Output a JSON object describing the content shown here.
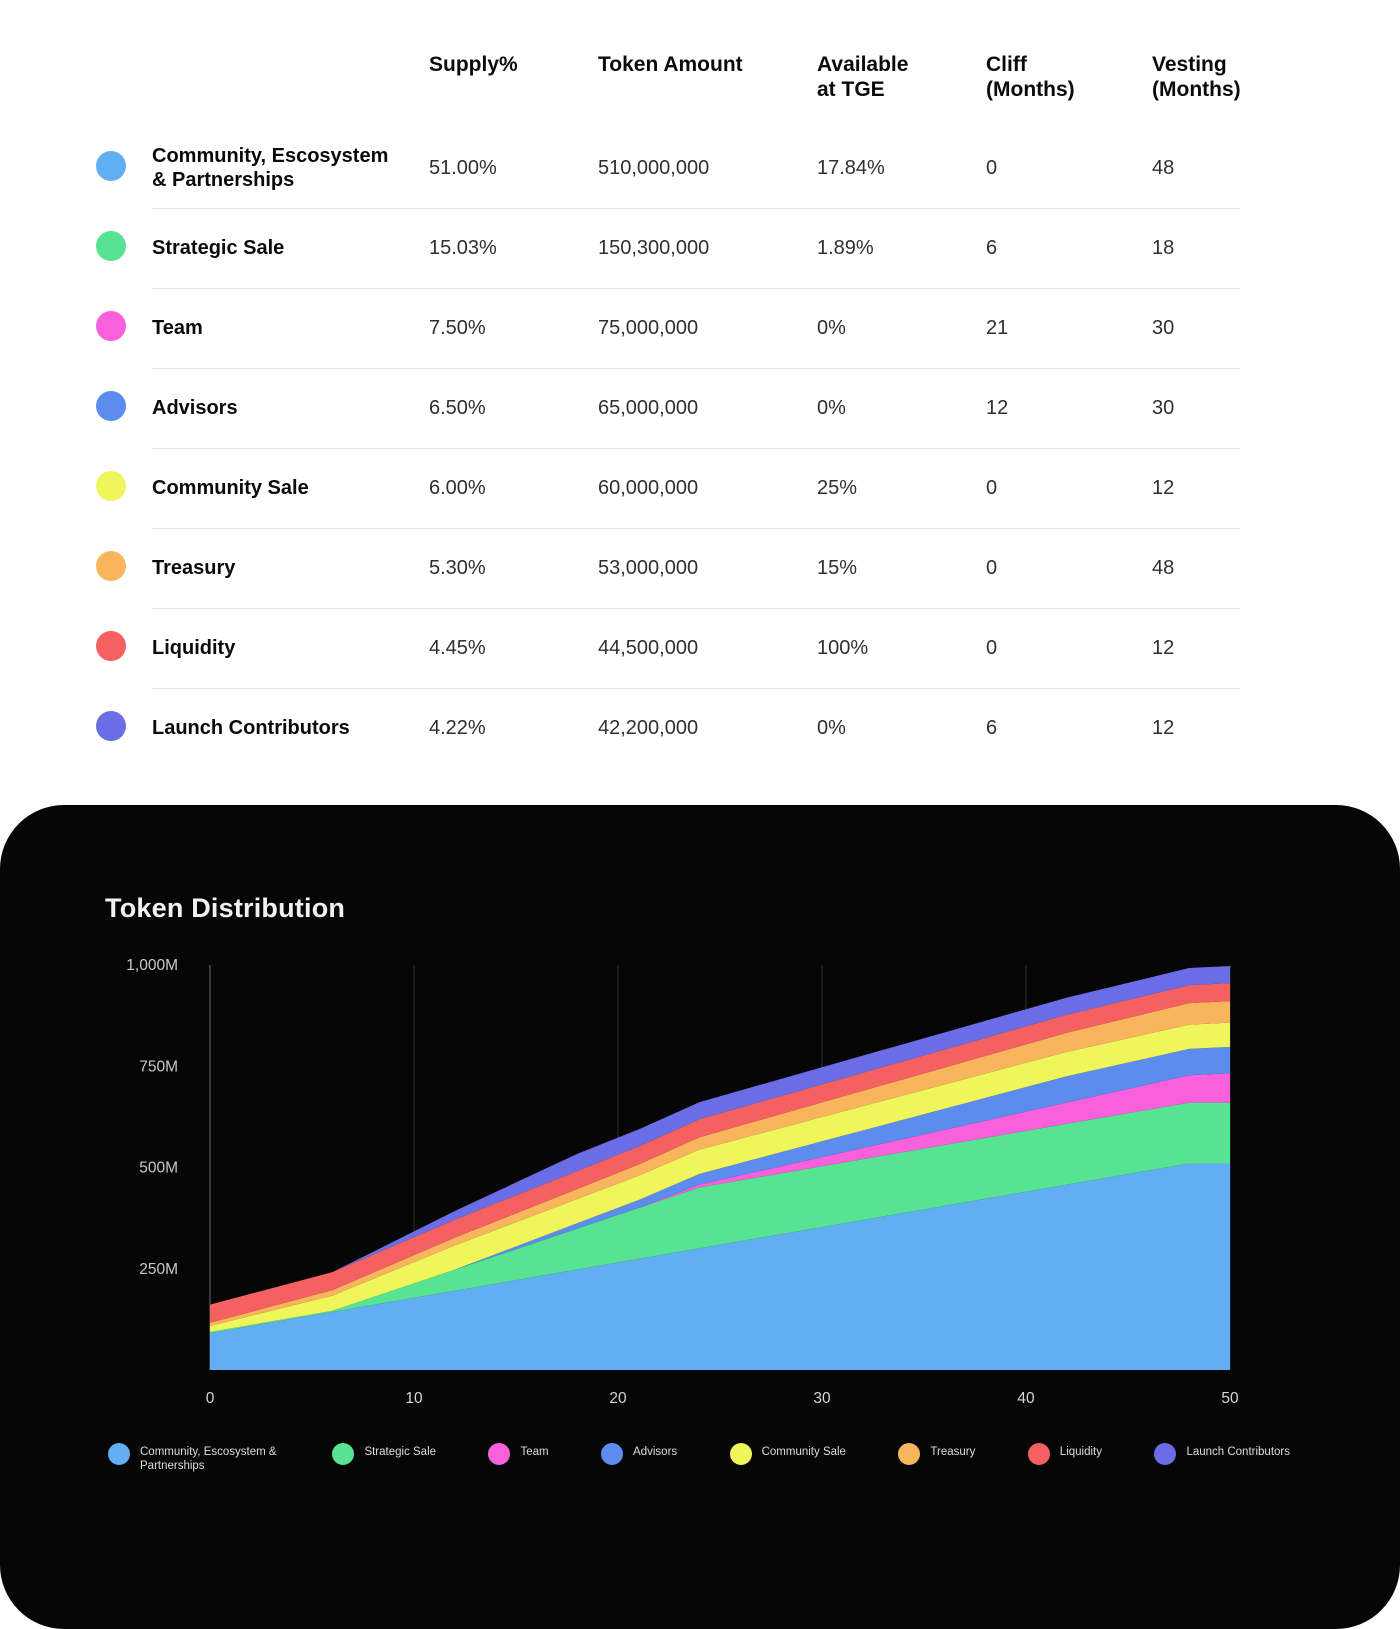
{
  "table": {
    "headers": {
      "supply": "Supply%",
      "amount": "Token Amount",
      "tge": "Available\nat TGE",
      "cliff": "Cliff\n(Months)",
      "vesting": "Vesting\n(Months)"
    },
    "rows": [
      {
        "name": "Community, Escosystem & Partnerships",
        "color": "#62aef3",
        "supply": "51.00%",
        "amount": "510,000,000",
        "tge": "17.84%",
        "cliff": "0",
        "vesting": "48"
      },
      {
        "name": "Strategic Sale",
        "color": "#57e492",
        "supply": "15.03%",
        "amount": "150,300,000",
        "tge": "1.89%",
        "cliff": "6",
        "vesting": "18"
      },
      {
        "name": "Team",
        "color": "#f960dc",
        "supply": "7.50%",
        "amount": "75,000,000",
        "tge": "0%",
        "cliff": "21",
        "vesting": "30"
      },
      {
        "name": "Advisors",
        "color": "#5d8cef",
        "supply": "6.50%",
        "amount": "65,000,000",
        "tge": "0%",
        "cliff": "12",
        "vesting": "30"
      },
      {
        "name": "Community Sale",
        "color": "#eef65c",
        "supply": "6.00%",
        "amount": "60,000,000",
        "tge": "25%",
        "cliff": "0",
        "vesting": "12"
      },
      {
        "name": "Treasury",
        "color": "#f8b55c",
        "supply": "5.30%",
        "amount": "53,000,000",
        "tge": "15%",
        "cliff": "0",
        "vesting": "48"
      },
      {
        "name": "Liquidity",
        "color": "#f56060",
        "supply": "4.45%",
        "amount": "44,500,000",
        "tge": "100%",
        "cliff": "0",
        "vesting": "12"
      },
      {
        "name": "Launch Contributors",
        "color": "#6b6de6",
        "supply": "4.22%",
        "amount": "42,200,000",
        "tge": "0%",
        "cliff": "6",
        "vesting": "12"
      }
    ]
  },
  "chart": {
    "title": "Token Distribution"
  },
  "chart_data": {
    "type": "area",
    "stacked": true,
    "title": "Token Distribution",
    "unit": "millions of tokens",
    "x": [
      0,
      6,
      12,
      18,
      21,
      24,
      30,
      36,
      42,
      48,
      50
    ],
    "xlim": [
      0,
      50
    ],
    "ylim": [
      0,
      1000
    ],
    "x_ticks": [
      0,
      10,
      20,
      30,
      40,
      50
    ],
    "x_tick_labels": [
      "0",
      "10",
      "20",
      "30",
      "40",
      "50"
    ],
    "y_ticks": [
      250,
      500,
      750,
      1000
    ],
    "y_tick_labels": [
      "250M",
      "500M",
      "750M",
      "1,000M"
    ],
    "grid": "vertical",
    "legend_position": "bottom",
    "series": [
      {
        "name": "Community, Escosystem & Partnerships",
        "color": "#62aef3",
        "values": [
          91.0,
          143.4,
          195.7,
          248.1,
          274.3,
          300.5,
          352.9,
          405.2,
          457.6,
          510.0,
          510.0
        ]
      },
      {
        "name": "Strategic Sale",
        "color": "#57e492",
        "values": [
          2.8,
          2.8,
          52.0,
          101.1,
          125.7,
          150.3,
          150.3,
          150.3,
          150.3,
          150.3,
          150.3
        ]
      },
      {
        "name": "Team",
        "color": "#f960dc",
        "values": [
          0,
          0,
          0,
          0,
          0,
          7.5,
          22.5,
          37.5,
          52.5,
          67.5,
          72.5
        ]
      },
      {
        "name": "Advisors",
        "color": "#5d8cef",
        "values": [
          0,
          0,
          0,
          13.0,
          19.5,
          26.0,
          39.0,
          52.0,
          65.0,
          65.0,
          65.0
        ]
      },
      {
        "name": "Community Sale",
        "color": "#eef65c",
        "values": [
          15.0,
          37.5,
          60.0,
          60.0,
          60.0,
          60.0,
          60.0,
          60.0,
          60.0,
          60.0,
          60.0
        ]
      },
      {
        "name": "Treasury",
        "color": "#f8b55c",
        "values": [
          8.0,
          13.6,
          19.2,
          24.8,
          27.7,
          30.5,
          36.1,
          41.7,
          47.4,
          53.0,
          53.0
        ]
      },
      {
        "name": "Liquidity",
        "color": "#f56060",
        "values": [
          44.5,
          44.5,
          44.5,
          44.5,
          44.5,
          44.5,
          44.5,
          44.5,
          44.5,
          44.5,
          44.5
        ]
      },
      {
        "name": "Launch Contributors",
        "color": "#6b6de6",
        "values": [
          0,
          0,
          21.1,
          42.2,
          42.2,
          42.2,
          42.2,
          42.2,
          42.2,
          42.2,
          42.2
        ]
      }
    ]
  }
}
